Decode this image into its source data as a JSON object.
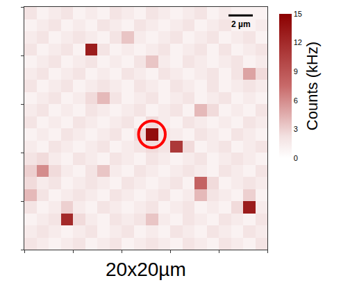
{
  "chart_data": {
    "type": "heatmap",
    "cell_size_um": 1,
    "cells": [
      [
        2,
        1.5,
        1,
        1.5,
        2,
        1,
        1.5,
        2,
        1,
        1.5,
        2,
        1.5,
        1,
        2,
        1.5,
        1,
        2,
        1.5,
        1,
        2
      ],
      [
        1.5,
        2,
        1.5,
        1,
        1.5,
        2,
        1,
        1.5,
        2,
        1,
        1.5,
        1,
        2,
        1.5,
        1,
        2,
        1.5,
        1,
        2,
        1.5
      ],
      [
        1,
        1.5,
        2,
        12,
        2.5,
        1.5,
        1,
        2,
        1.5,
        2,
        3.5,
        1.5,
        1,
        2,
        1.5,
        1,
        2,
        1.5,
        1,
        2
      ],
      [
        2,
        1,
        1.5,
        3,
        1.5,
        1,
        2,
        1.5,
        1,
        1.5,
        2,
        1,
        1.5,
        2,
        1,
        1.5,
        1,
        2.5,
        13,
        1.5
      ],
      [
        4,
        2,
        1,
        1.5,
        2,
        1.5,
        1,
        2,
        1.5,
        1,
        1.5,
        2,
        1,
        1.5,
        4,
        2,
        1.5,
        1,
        3,
        1
      ],
      [
        2.5,
        1.5,
        2,
        1,
        1.5,
        2,
        1.5,
        1,
        2,
        1.5,
        1,
        1.5,
        2,
        1,
        8,
        2.5,
        1,
        1.5,
        2,
        1.5
      ],
      [
        3,
        6,
        2.5,
        1.5,
        1,
        2,
        3.5,
        1.5,
        1,
        2,
        1.5,
        1,
        1.5,
        2,
        1.5,
        1,
        2,
        1.5,
        1,
        2
      ],
      [
        2,
        2.5,
        1.5,
        1,
        2,
        1.5,
        1,
        2,
        1.5,
        1,
        2,
        1.5,
        1,
        1.5,
        2,
        1,
        1.5,
        2,
        1.5,
        1
      ],
      [
        1.5,
        1,
        2,
        1.5,
        1,
        1.5,
        2,
        1,
        1.5,
        2,
        2.5,
        2,
        11,
        2.5,
        1,
        1.5,
        2,
        1,
        1.5,
        2
      ],
      [
        1,
        1.5,
        1,
        2,
        1.5,
        1,
        1.5,
        2,
        1,
        2.5,
        14,
        2,
        1.5,
        1,
        2,
        1.5,
        1,
        2,
        1.5,
        1
      ],
      [
        2,
        1,
        1.5,
        1,
        2,
        1.5,
        1,
        1.5,
        2,
        1,
        2.5,
        1.5,
        1,
        2,
        1.5,
        1,
        1.5,
        1,
        2,
        1.5
      ],
      [
        1.5,
        2,
        1,
        1.5,
        1,
        2,
        1.5,
        1,
        1.5,
        2,
        1,
        1.5,
        2,
        1,
        4,
        2.5,
        1,
        1.5,
        1,
        2
      ],
      [
        1,
        1.5,
        2,
        1,
        1.5,
        2.5,
        4,
        2,
        1,
        1.5,
        2,
        1,
        1.5,
        2,
        1,
        1.5,
        2,
        1,
        1.5,
        1
      ],
      [
        2,
        1,
        1.5,
        2,
        1,
        1.5,
        2,
        1.5,
        1,
        2,
        1.5,
        1,
        2,
        1.5,
        1,
        2,
        1,
        1.5,
        2,
        1.5
      ],
      [
        1.5,
        2,
        1,
        1.5,
        2,
        1,
        1.5,
        1,
        2,
        1.5,
        1,
        2,
        1.5,
        1,
        1.5,
        2,
        1,
        2,
        5,
        2.5
      ],
      [
        1,
        1.5,
        2,
        1,
        1.5,
        2,
        1,
        1.5,
        1,
        2,
        3.5,
        1.5,
        1,
        2,
        1.5,
        1,
        1.5,
        2,
        1,
        1.5
      ],
      [
        2,
        1,
        1.5,
        2,
        1,
        13,
        2,
        1,
        1.5,
        1,
        1.5,
        2,
        1,
        1.5,
        2,
        1,
        2,
        1,
        1.5,
        2
      ],
      [
        1.5,
        2,
        1,
        1.5,
        2,
        1.5,
        1,
        2,
        3.5,
        1.5,
        1,
        1.5,
        2,
        1,
        1.5,
        2,
        1,
        1.5,
        2,
        1
      ],
      [
        1,
        1.5,
        2,
        1,
        1.5,
        1,
        2,
        1.5,
        1,
        2,
        1.5,
        1,
        1.5,
        2,
        1,
        1.5,
        2,
        1,
        1,
        1.5
      ],
      [
        2,
        1,
        1.5,
        2,
        1,
        1.5,
        1,
        2,
        1.5,
        1,
        2,
        1.5,
        1,
        1.5,
        2,
        1,
        1.5,
        1,
        1,
        1
      ]
    ],
    "xlim": [
      0,
      20
    ],
    "ylim": [
      0,
      20
    ],
    "xticks": [
      0,
      4,
      8,
      12,
      16,
      20
    ],
    "yticks": [
      0,
      4,
      8,
      12,
      16,
      20
    ],
    "tick_labels": false,
    "color": "#8b0000",
    "colorbar": {
      "title": "Counts (kHz)",
      "range": [
        0,
        15
      ],
      "ticks": [
        0,
        3,
        6,
        9,
        12,
        15
      ]
    },
    "scale_bar": {
      "length_um": 2,
      "label": "2 µm"
    },
    "caption": "20x20µm",
    "highlight": {
      "column": 10,
      "row": 9
    }
  }
}
